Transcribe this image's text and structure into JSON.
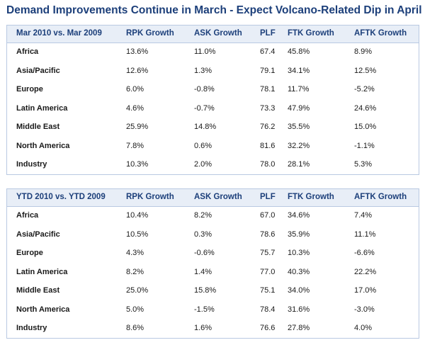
{
  "title": "Demand Improvements Continue in March - Expect Volcano-Related Dip in April",
  "tables": [
    {
      "headers": [
        "Mar 2010 vs. Mar 2009",
        "RPK Growth",
        "ASK Growth",
        "PLF",
        "FTK Growth",
        "AFTK Growth"
      ],
      "rows": [
        [
          "Africa",
          "13.6%",
          "11.0%",
          "67.4",
          "45.8%",
          "8.9%"
        ],
        [
          "Asia/Pacific",
          "12.6%",
          "1.3%",
          "79.1",
          "34.1%",
          "12.5%"
        ],
        [
          "Europe",
          "6.0%",
          "-0.8%",
          "78.1",
          "11.7%",
          "-5.2%"
        ],
        [
          "Latin America",
          "4.6%",
          "-0.7%",
          "73.3",
          "47.9%",
          "24.6%"
        ],
        [
          "Middle East",
          "25.9%",
          "14.8%",
          "76.2",
          "35.5%",
          "15.0%"
        ],
        [
          "North America",
          "7.8%",
          "0.6%",
          "81.6",
          "32.2%",
          "-1.1%"
        ],
        [
          "Industry",
          "10.3%",
          "2.0%",
          "78.0",
          "28.1%",
          "5.3%"
        ]
      ]
    },
    {
      "headers": [
        "YTD 2010 vs. YTD 2009",
        "RPK Growth",
        "ASK Growth",
        "PLF",
        "FTK Growth",
        "AFTK Growth"
      ],
      "rows": [
        [
          "Africa",
          "10.4%",
          "8.2%",
          "67.0",
          "34.6%",
          "7.4%"
        ],
        [
          "Asia/Pacific",
          "10.5%",
          "0.3%",
          "78.6",
          "35.9%",
          "11.1%"
        ],
        [
          "Europe",
          "4.3%",
          "-0.6%",
          "75.7",
          "10.3%",
          "-6.6%"
        ],
        [
          "Latin America",
          "8.2%",
          "1.4%",
          "77.0",
          "40.3%",
          "22.2%"
        ],
        [
          "Middle East",
          "25.0%",
          "15.8%",
          "75.1",
          "34.0%",
          "17.0%"
        ],
        [
          "North America",
          "5.0%",
          "-1.5%",
          "78.4",
          "31.6%",
          "-3.0%"
        ],
        [
          "Industry",
          "8.6%",
          "1.6%",
          "76.6",
          "27.8%",
          "4.0%"
        ]
      ]
    }
  ],
  "colors": {
    "title": "#1c3f7a",
    "header_bg": "#e8eef7",
    "border": "#b9c9e2"
  }
}
